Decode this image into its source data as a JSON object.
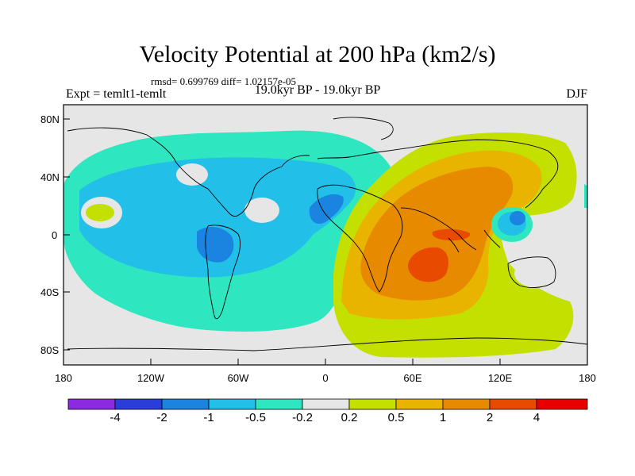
{
  "title": "Velocity Potential at 200 hPa (km2/s)",
  "stats": "rmsd= 0.699769 diff= 1.02157e-05",
  "expt": "Expt = temlt1-temlt",
  "period": "19.0kyr BP - 19.0kyr BP",
  "season": "DJF",
  "y_axis": {
    "labels": [
      "80N",
      "40N",
      "0",
      "40S",
      "80S"
    ]
  },
  "x_axis": {
    "labels": [
      "180",
      "120W",
      "60W",
      "0",
      "60E",
      "120E",
      "180"
    ]
  },
  "colorbar": {
    "labels": [
      "-4",
      "-2",
      "-1",
      "-0.5",
      "-0.2",
      "0.2",
      "0.5",
      "1",
      "2",
      "4"
    ],
    "colors": [
      "#8a2be2",
      "#2a3cd9",
      "#1a84e0",
      "#22bfe8",
      "#2ee6c0",
      "#e6e6e6",
      "#c4e000",
      "#e8b400",
      "#e88a00",
      "#e84a00",
      "#e80000"
    ]
  },
  "colors": {
    "neutral": "#e6e6e6",
    "cyan": "#2ee6c0",
    "lightblue": "#22bfe8",
    "blue": "#1a84e0",
    "yellowgreen": "#c4e000",
    "gold": "#e8b400",
    "orange": "#e88a00",
    "redorange": "#e84a00"
  }
}
